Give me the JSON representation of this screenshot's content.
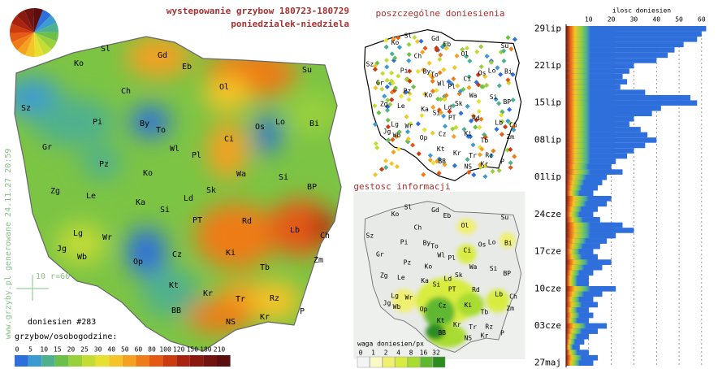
{
  "header": {
    "title": "wystepowanie grzybow 180723-180729",
    "subtitle": "poniedzialek-niedziela"
  },
  "watermark": "www.grzyby.pl generowane 24.11.27 20:59",
  "scale_note": "10 r=60",
  "main_map": {
    "cities": [
      "Sl",
      "Gd",
      "Eb",
      "Su",
      "Ko",
      "Ch",
      "Ol",
      "Sz",
      "Pi",
      "By",
      "To",
      "Os",
      "Lo",
      "Bi",
      "Gr",
      "Wl",
      "Ci",
      "Pl",
      "Pz",
      "Ko",
      "Wa",
      "Si",
      "Zg",
      "Le",
      "Ka",
      "Sk",
      "Ld",
      "BP",
      "Lg",
      "Wr",
      "Si",
      "PT",
      "Rd",
      "Lb",
      "Jg",
      "Wb",
      "Op",
      "Cz",
      "Ki",
      "Ch",
      "Zm",
      "Tb",
      "Kt",
      "Kr",
      "Rz",
      "BB",
      "Tr",
      "NS",
      "Kr",
      "P"
    ],
    "count_label": "doniesien #283",
    "legend_title": "grzybow/osobogodzine:",
    "legend": {
      "values": [
        0,
        5,
        10,
        15,
        20,
        25,
        30,
        40,
        50,
        60,
        80,
        100,
        120,
        150,
        180,
        210
      ],
      "colors": [
        "#2f6fdc",
        "#3c9bd0",
        "#4fb08e",
        "#6cc04a",
        "#9ad03c",
        "#c4dc34",
        "#e8e030",
        "#f4c428",
        "#f4a020",
        "#ee7c18",
        "#e45a14",
        "#cc3a10",
        "#a82410",
        "#8a1a10",
        "#701410",
        "#5a0e0e"
      ]
    }
  },
  "points_map": {
    "title": "poszczególne doniesienia"
  },
  "density_map": {
    "title": "gestosc informacji",
    "legend_title": "waga doniesien/px",
    "legend": {
      "values": [
        0,
        1,
        2,
        4,
        8,
        16,
        32
      ],
      "colors": [
        "#f4f4f4",
        "#fafac8",
        "#f0f070",
        "#d8ec40",
        "#a8dc30",
        "#60b830",
        "#2c8c20"
      ]
    }
  },
  "chart_data": {
    "type": "bar",
    "orientation": "horizontal",
    "title": "ilosc doniesien",
    "categories": [
      "29lip",
      null,
      null,
      null,
      null,
      null,
      null,
      "22lip",
      null,
      null,
      null,
      null,
      null,
      null,
      "15lip",
      null,
      null,
      null,
      null,
      null,
      null,
      "08lip",
      null,
      null,
      null,
      null,
      null,
      null,
      "01lip",
      null,
      null,
      null,
      null,
      null,
      null,
      "24cze",
      null,
      null,
      null,
      null,
      null,
      null,
      "17cze",
      null,
      null,
      null,
      null,
      null,
      null,
      "10cze",
      null,
      null,
      null,
      null,
      null,
      null,
      "03cze",
      null,
      null,
      null,
      null,
      null,
      null,
      "27maj"
    ],
    "values": [
      62,
      60,
      58,
      52,
      48,
      45,
      40,
      30,
      28,
      25,
      27,
      24,
      35,
      55,
      58,
      42,
      38,
      30,
      28,
      33,
      36,
      40,
      35,
      30,
      27,
      22,
      20,
      25,
      18,
      16,
      14,
      12,
      20,
      18,
      14,
      12,
      15,
      25,
      30,
      22,
      18,
      15,
      12,
      14,
      20,
      16,
      12,
      10,
      10,
      22,
      16,
      12,
      14,
      10,
      12,
      10,
      18,
      14,
      10,
      8,
      6,
      10,
      14,
      12
    ],
    "color": "#2f6fdc",
    "xlim": [
      0,
      64
    ],
    "xticks": [
      10,
      20,
      30,
      40,
      50,
      60
    ],
    "grid": true
  }
}
